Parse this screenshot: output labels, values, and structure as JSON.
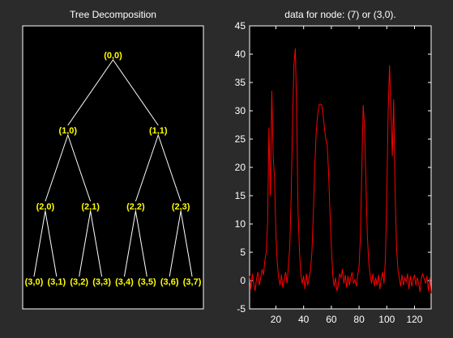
{
  "left_panel": {
    "title": "Tree Decomposition",
    "nodes": [
      {
        "id": "n0",
        "label": "(0,0)",
        "parent": null,
        "depth": 0,
        "index": 0
      },
      {
        "id": "n1",
        "label": "(1,0)",
        "parent": "n0",
        "depth": 1,
        "index": 0
      },
      {
        "id": "n2",
        "label": "(1,1)",
        "parent": "n0",
        "depth": 1,
        "index": 1
      },
      {
        "id": "n3",
        "label": "(2,0)",
        "parent": "n1",
        "depth": 2,
        "index": 0
      },
      {
        "id": "n4",
        "label": "(2,1)",
        "parent": "n1",
        "depth": 2,
        "index": 1
      },
      {
        "id": "n5",
        "label": "(2,2)",
        "parent": "n2",
        "depth": 2,
        "index": 2
      },
      {
        "id": "n6",
        "label": "(2,3)",
        "parent": "n2",
        "depth": 2,
        "index": 3
      },
      {
        "id": "n7",
        "label": "(3,0)",
        "parent": "n3",
        "depth": 3,
        "index": 0
      },
      {
        "id": "n8",
        "label": "(3,1)",
        "parent": "n3",
        "depth": 3,
        "index": 1
      },
      {
        "id": "n9",
        "label": "(3,2)",
        "parent": "n4",
        "depth": 3,
        "index": 2
      },
      {
        "id": "n10",
        "label": "(3,3)",
        "parent": "n4",
        "depth": 3,
        "index": 3
      },
      {
        "id": "n11",
        "label": "(3,4)",
        "parent": "n5",
        "depth": 3,
        "index": 4
      },
      {
        "id": "n12",
        "label": "(3,5)",
        "parent": "n5",
        "depth": 3,
        "index": 5
      },
      {
        "id": "n13",
        "label": "(3,6)",
        "parent": "n6",
        "depth": 3,
        "index": 6
      },
      {
        "id": "n14",
        "label": "(3,7)",
        "parent": "n6",
        "depth": 3,
        "index": 7
      }
    ],
    "colors": {
      "node_label": "#ffff00",
      "edge": "#ffffff",
      "background": "#000000"
    }
  },
  "right_panel": {
    "title": "data for node: (7) or (3,0).",
    "colors": {
      "line": "#ff0000",
      "background": "#000000",
      "axes": "#ffffff"
    }
  },
  "chart_data": {
    "type": "line",
    "title": "data for node: (7) or (3,0).",
    "xlabel": "",
    "ylabel": "",
    "xlim": [
      1,
      132
    ],
    "ylim": [
      -5,
      45
    ],
    "xticks": [
      20,
      40,
      60,
      80,
      100,
      120
    ],
    "yticks": [
      -5,
      0,
      5,
      10,
      15,
      20,
      25,
      30,
      35,
      40,
      45
    ],
    "grid": false,
    "series": [
      {
        "color": "#ff0000",
        "x": [
          1,
          2,
          3,
          4,
          5,
          6,
          7,
          8,
          9,
          10,
          11,
          12,
          13,
          14,
          15,
          16,
          17,
          18,
          19,
          20,
          21,
          22,
          23,
          24,
          25,
          26,
          27,
          28,
          29,
          30,
          31,
          32,
          33,
          34,
          35,
          36,
          37,
          38,
          39,
          40,
          41,
          42,
          43,
          44,
          45,
          46,
          47,
          48,
          49,
          50,
          51,
          52,
          53,
          54,
          55,
          56,
          57,
          58,
          59,
          60,
          61,
          62,
          63,
          64,
          65,
          66,
          67,
          68,
          69,
          70,
          71,
          72,
          73,
          74,
          75,
          76,
          77,
          78,
          79,
          80,
          81,
          82,
          83,
          84,
          85,
          86,
          87,
          88,
          89,
          90,
          91,
          92,
          93,
          94,
          95,
          96,
          97,
          98,
          99,
          100,
          101,
          102,
          103,
          104,
          105,
          106,
          107,
          108,
          109,
          110,
          111,
          112,
          113,
          114,
          115,
          116,
          117,
          118,
          119,
          120,
          121,
          122,
          123,
          124,
          125,
          126,
          127,
          128,
          129,
          130,
          131,
          132
        ],
        "y": [
          0.8,
          -1.5,
          1.2,
          -0.5,
          -1.8,
          0.3,
          1.5,
          -0.8,
          0.5,
          2.0,
          1.0,
          3.5,
          5.0,
          10.0,
          27.0,
          15.0,
          33.5,
          22.0,
          18.0,
          8.0,
          3.0,
          0.5,
          -0.8,
          1.0,
          -1.2,
          0.2,
          1.5,
          -0.5,
          2.5,
          6.0,
          15.0,
          28.0,
          38.0,
          41.0,
          30.0,
          12.0,
          5.0,
          1.0,
          -0.5,
          0.8,
          -1.5,
          1.2,
          -0.8,
          0.5,
          2.0,
          5.0,
          12.0,
          20.0,
          26.0,
          29.0,
          31.0,
          31.2,
          31.0,
          29.5,
          27.0,
          25.0,
          24.0,
          19.0,
          12.0,
          6.0,
          1.0,
          -1.0,
          0.5,
          -1.8,
          -0.8,
          1.2,
          0.5,
          2.0,
          -0.5,
          1.0,
          -1.2,
          0.8,
          -0.8,
          0.5,
          1.5,
          -0.5,
          0.2,
          -1.0,
          1.0,
          2.5,
          8.0,
          20.0,
          31.0,
          27.0,
          17.0,
          8.0,
          3.0,
          1.0,
          -0.5,
          1.2,
          -1.0,
          0.5,
          -0.8,
          1.0,
          -1.5,
          0.2,
          1.5,
          -0.5,
          4.0,
          15.0,
          30.0,
          38.0,
          30.0,
          22.0,
          32.0,
          16.0,
          6.0,
          2.0,
          0.5,
          -1.0,
          1.0,
          -0.8,
          0.5,
          -0.2,
          1.2,
          -1.5,
          0.8,
          -1.0,
          0.2,
          1.0,
          -0.8,
          0.5,
          -0.5,
          -2.0,
          0.5,
          1.2,
          0.3,
          -0.5,
          0.8,
          -1.8,
          0.5,
          -2.2
        ]
      }
    ]
  }
}
